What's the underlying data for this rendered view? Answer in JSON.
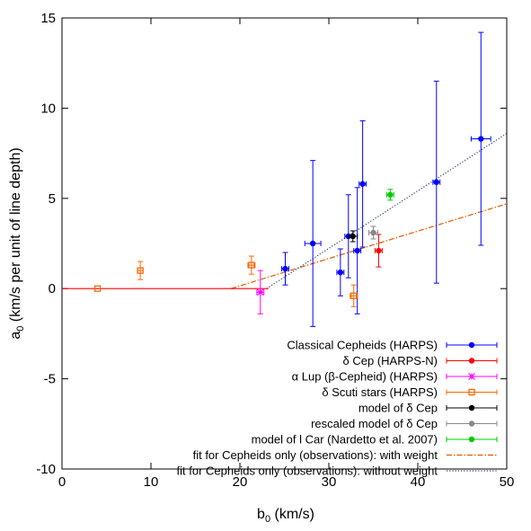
{
  "chart_data": {
    "type": "scatter",
    "xlim": [
      0,
      50
    ],
    "ylim": [
      -10,
      15
    ],
    "xticks": [
      "0",
      "10",
      "20",
      "30",
      "40",
      "50"
    ],
    "yticks": [
      "-10",
      "-5",
      "0",
      "5",
      "10",
      "15"
    ],
    "xlabel": {
      "main": "b",
      "sub": "0",
      "rest": " (km/s)"
    },
    "ylabel": {
      "main": "a",
      "sub": "0",
      "rest": " (km/s per unit of line depth)"
    },
    "grid": false,
    "legend_position": "bottom-right",
    "series": [
      {
        "name": "Classical Cepheids (HARPS)",
        "color": "#0000ff",
        "marker": "circle",
        "points": [
          {
            "x": 25.1,
            "y": 1.1,
            "xerr": 0.4,
            "yerr": 0.9
          },
          {
            "x": 28.2,
            "y": 2.5,
            "xerr": 0.9,
            "yerr": 4.6
          },
          {
            "x": 31.3,
            "y": 0.9,
            "xerr": 0.4,
            "yerr": 1.3
          },
          {
            "x": 32.2,
            "y": 2.9,
            "xerr": 0.4,
            "yerr": 2.3
          },
          {
            "x": 33.2,
            "y": 2.1,
            "xerr": 0.4,
            "yerr": 3.5
          },
          {
            "x": 33.8,
            "y": 5.8,
            "xerr": 0.4,
            "yerr": 3.5
          },
          {
            "x": 42.1,
            "y": 5.9,
            "xerr": 0.4,
            "yerr": 5.6
          },
          {
            "x": 47.1,
            "y": 8.3,
            "xerr": 1.1,
            "yerr": 5.9
          }
        ]
      },
      {
        "name": "δ Cep (HARPS-N)",
        "color": "#ff0000",
        "marker": "circle",
        "points": [
          {
            "x": 35.6,
            "y": 2.1,
            "xerr": 0.4,
            "yerr": 0.9
          }
        ]
      },
      {
        "name": "α Lup (β-Cepheid) (HARPS)",
        "color": "#ff00ff",
        "marker": "star",
        "points": [
          {
            "x": 22.3,
            "y": -0.2,
            "xerr": 0.4,
            "yerr": 1.2
          }
        ]
      },
      {
        "name": "δ Scuti stars (HARPS)",
        "color": "#ff6600",
        "marker": "open-square",
        "points": [
          {
            "x": 4.0,
            "y": 0.0,
            "xerr": 0.0,
            "yerr": 0.0
          },
          {
            "x": 8.8,
            "y": 1.0,
            "xerr": 0.3,
            "yerr": 0.5
          },
          {
            "x": 21.3,
            "y": 1.3,
            "xerr": 0.4,
            "yerr": 0.5
          },
          {
            "x": 32.8,
            "y": -0.4,
            "xerr": 0.4,
            "yerr": 0.6
          }
        ]
      },
      {
        "name": "model of δ Cep",
        "color": "#000000",
        "marker": "circle",
        "points": [
          {
            "x": 32.7,
            "y": 2.9,
            "xerr": 0.5,
            "yerr": 0.3
          }
        ]
      },
      {
        "name": "rescaled model of δ Cep",
        "color": "#888888",
        "marker": "circle",
        "points": [
          {
            "x": 35.0,
            "y": 3.1,
            "xerr": 0.5,
            "yerr": 0.35
          }
        ]
      },
      {
        "name": "model of l Car (Nardetto et al. 2007)",
        "color": "#00cc00",
        "marker": "circle",
        "points": [
          {
            "x": 36.9,
            "y": 5.2,
            "xerr": 0.4,
            "yerr": 0.3
          }
        ]
      }
    ],
    "lines": [
      {
        "name": "fit for Cepheids only (observations): with weight",
        "color": "#e05a00",
        "style": "dashdot",
        "points": [
          [
            19.0,
            0.0
          ],
          [
            50.0,
            4.7
          ]
        ]
      },
      {
        "name": "fit for Cepheids only (observations): without weight",
        "color": "#2a3f66",
        "style": "dotted",
        "points": [
          [
            23.0,
            0.0
          ],
          [
            50.0,
            8.6
          ]
        ]
      },
      {
        "name": "",
        "color": "#ff0000",
        "style": "solid",
        "points": [
          [
            0.0,
            0.0
          ],
          [
            23.2,
            0.0
          ]
        ]
      }
    ]
  }
}
